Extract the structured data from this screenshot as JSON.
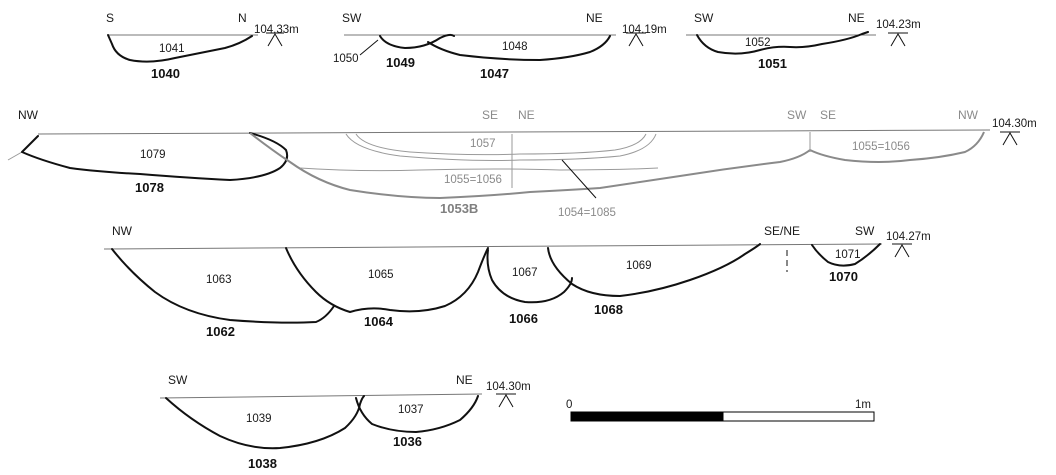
{
  "sections": {
    "s1040": {
      "left_dir": "S",
      "right_dir": "N",
      "datum": "104.33m",
      "fill": "1041",
      "cut": "1040"
    },
    "s1047": {
      "left_dir": "SW",
      "right_dir": "NE",
      "datum": "104.19m",
      "fill_a": "1048",
      "fill_b": "1050",
      "cut_a": "1049",
      "cut_b": "1047"
    },
    "s1051": {
      "left_dir": "SW",
      "right_dir": "NE",
      "datum": "104.23m",
      "fill": "1052",
      "cut": "1051"
    },
    "s1053": {
      "dir_nw_left": "NW",
      "dir_se_1": "SE",
      "dir_ne": "NE",
      "dir_sw": "SW",
      "dir_se_2": "SE",
      "dir_nw_right": "NW",
      "datum": "104.30m",
      "fill_1079": "1079",
      "cut_1078": "1078",
      "fill_1057": "1057",
      "fill_1055a": "1055=1056",
      "fill_1055b": "1055=1056",
      "fill_1054": "1054=1085",
      "cut_1053b": "1053B"
    },
    "s1062": {
      "left_dir": "NW",
      "mid_dir": "SE/NE",
      "right_dir": "SW",
      "datum": "104.27m",
      "fill_1063": "1063",
      "fill_1065": "1065",
      "fill_1067": "1067",
      "fill_1069": "1069",
      "fill_1071": "1071",
      "cut_1062": "1062",
      "cut_1064": "1064",
      "cut_1066": "1066",
      "cut_1068": "1068",
      "cut_1070": "1070"
    },
    "s1038": {
      "left_dir": "SW",
      "right_dir": "NE",
      "datum": "104.30m",
      "fill_1039": "1039",
      "fill_1037": "1037",
      "cut_1038": "1038",
      "cut_1036": "1036"
    }
  },
  "scale_bar": {
    "start_label": "0",
    "end_label": "1m",
    "segments": 2
  },
  "colors": {
    "line": "#111111",
    "grey_line": "#8a8a8a",
    "scale_fill": "#000000"
  }
}
